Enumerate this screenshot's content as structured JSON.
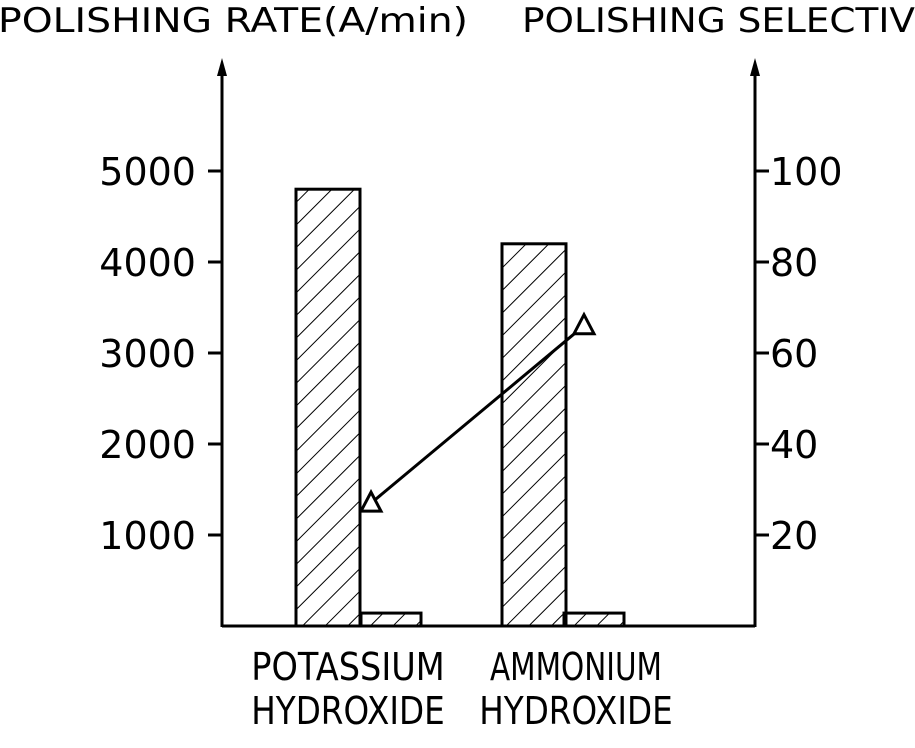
{
  "chart_data": {
    "type": "bar",
    "title": "",
    "ylabel": "POLISHING RATE(A/min)",
    "y2label": "POLISHING SELECTIV",
    "categories": [
      "POTASSIUM HYDROXIDE",
      "AMMONIUM HYDROXIDE"
    ],
    "category_lines": [
      [
        "POTASSIUM",
        "HYDROXIDE"
      ],
      [
        "AMMONIUM",
        "HYDROXIDE"
      ]
    ],
    "yticks": [
      "1000",
      "2000",
      "3000",
      "4000",
      "5000"
    ],
    "y2ticks": [
      "20",
      "40",
      "60",
      "80",
      "100"
    ],
    "ylim": [
      0,
      5000
    ],
    "y2lim": [
      0,
      100
    ],
    "series": [
      {
        "axis": "left",
        "style": "bar-hatched-tall",
        "values": [
          4800,
          4200
        ]
      },
      {
        "axis": "left",
        "style": "bar-hatched-short",
        "values": [
          120,
          120
        ]
      },
      {
        "axis": "right",
        "style": "line-triangle-marker",
        "values": [
          27,
          66
        ]
      }
    ],
    "grid": false,
    "legend": "none"
  }
}
